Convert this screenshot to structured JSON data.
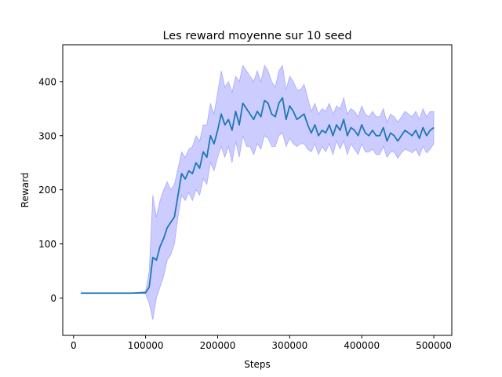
{
  "chart_data": {
    "type": "line",
    "title": "Les reward moyenne sur 10 seed",
    "xlabel": "Steps",
    "ylabel": "Reward",
    "xlim": [
      -15000,
      525000
    ],
    "ylim": [
      -69,
      468
    ],
    "xticks": [
      0,
      100000,
      200000,
      300000,
      400000,
      500000
    ],
    "yticks": [
      0,
      100,
      200,
      300,
      400
    ],
    "grid": false,
    "colors": {
      "line": "#1f77b4",
      "band": "#0000ff",
      "band_opacity": 0.2
    },
    "series": [
      {
        "x": [
          10000,
          20000,
          40000,
          60000,
          80000,
          100000,
          105000,
          110000,
          115000,
          120000,
          125000,
          130000,
          135000,
          140000,
          145000,
          150000,
          155000,
          160000,
          165000,
          170000,
          175000,
          180000,
          185000,
          190000,
          195000,
          200000,
          205000,
          210000,
          215000,
          220000,
          225000,
          230000,
          235000,
          240000,
          245000,
          250000,
          255000,
          260000,
          265000,
          270000,
          275000,
          280000,
          285000,
          290000,
          295000,
          300000,
          305000,
          310000,
          315000,
          320000,
          325000,
          330000,
          335000,
          340000,
          345000,
          350000,
          355000,
          360000,
          365000,
          370000,
          375000,
          380000,
          385000,
          390000,
          395000,
          400000,
          405000,
          410000,
          415000,
          420000,
          425000,
          430000,
          435000,
          440000,
          445000,
          450000,
          455000,
          460000,
          465000,
          470000,
          475000,
          480000,
          485000,
          490000,
          495000,
          500000
        ],
        "mean": [
          9,
          9,
          9,
          9,
          9,
          10,
          20,
          75,
          70,
          95,
          110,
          130,
          140,
          150,
          190,
          230,
          220,
          235,
          230,
          250,
          240,
          270,
          260,
          300,
          285,
          310,
          340,
          320,
          330,
          310,
          345,
          320,
          360,
          350,
          340,
          330,
          345,
          335,
          365,
          360,
          340,
          335,
          360,
          370,
          330,
          355,
          345,
          330,
          335,
          340,
          320,
          305,
          320,
          300,
          310,
          305,
          320,
          300,
          320,
          310,
          330,
          300,
          315,
          310,
          300,
          320,
          305,
          300,
          310,
          300,
          300,
          315,
          290,
          305,
          300,
          290,
          300,
          310,
          305,
          300,
          310,
          295,
          315,
          300,
          310,
          315
        ],
        "lower": [
          9,
          9,
          9,
          9,
          9,
          8,
          -10,
          -40,
          0,
          20,
          40,
          70,
          80,
          100,
          150,
          190,
          180,
          195,
          180,
          200,
          190,
          220,
          210,
          250,
          235,
          260,
          280,
          260,
          280,
          250,
          290,
          260,
          300,
          280,
          280,
          265,
          285,
          275,
          300,
          295,
          280,
          280,
          300,
          305,
          280,
          295,
          285,
          280,
          285,
          285,
          275,
          270,
          285,
          265,
          280,
          270,
          285,
          265,
          290,
          275,
          290,
          265,
          285,
          275,
          265,
          285,
          270,
          270,
          275,
          265,
          265,
          280,
          260,
          270,
          270,
          258,
          268,
          275,
          272,
          268,
          275,
          262,
          280,
          268,
          275,
          285
        ],
        "upper": [
          9,
          9,
          9,
          9,
          9,
          12,
          50,
          190,
          150,
          180,
          200,
          215,
          200,
          210,
          240,
          270,
          260,
          275,
          280,
          300,
          290,
          320,
          320,
          360,
          340,
          380,
          420,
          390,
          400,
          380,
          410,
          400,
          430,
          420,
          410,
          400,
          420,
          400,
          430,
          420,
          400,
          390,
          420,
          430,
          385,
          410,
          400,
          385,
          385,
          395,
          370,
          345,
          360,
          340,
          350,
          345,
          360,
          340,
          355,
          350,
          370,
          340,
          350,
          345,
          335,
          355,
          340,
          335,
          345,
          335,
          335,
          350,
          325,
          340,
          335,
          325,
          335,
          345,
          340,
          335,
          345,
          330,
          350,
          335,
          345,
          345
        ]
      }
    ]
  }
}
